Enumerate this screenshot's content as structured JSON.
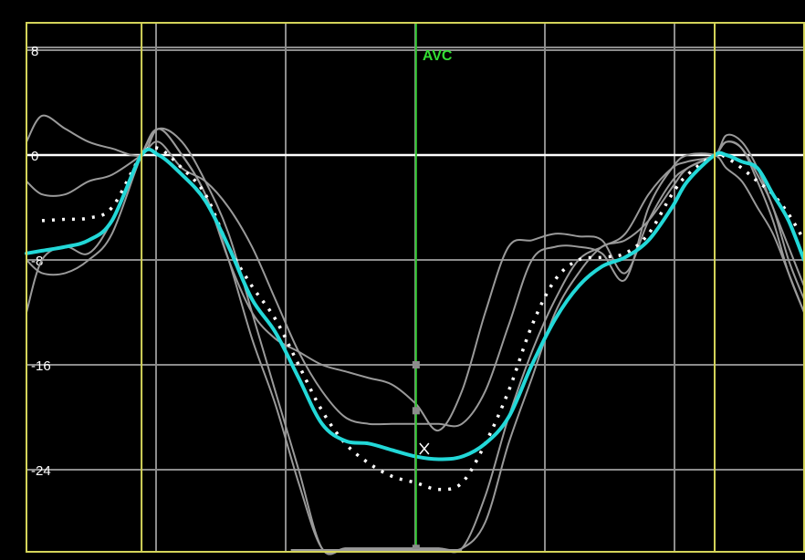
{
  "chart_data": {
    "type": "line",
    "title": "",
    "xlabel": "",
    "ylabel": "",
    "ylim": [
      -30,
      10
    ],
    "xlim": [
      0,
      100
    ],
    "y_ticks": [
      {
        "value": 8,
        "label": "8"
      },
      {
        "value": 0,
        "label": "0"
      },
      {
        "value": -8,
        "label": "-8"
      },
      {
        "value": -16,
        "label": "-16"
      },
      {
        "value": -24,
        "label": "-24"
      }
    ],
    "grid": true,
    "background": "#000000",
    "colors": {
      "grid": "#8c8c8c",
      "zero_line": "#ffffff",
      "cycle_markers": "#d4d45a",
      "avc_marker": "#2ec42e",
      "segment_curves": "#9a9a9a",
      "average_curve": "#22d8d8",
      "dotted_curve": "#ffffff",
      "border": "#d4d45a"
    },
    "cycle_markers_x": [
      14.8,
      88.5
    ],
    "avc": {
      "label": "AVC",
      "x": 50.1
    },
    "segments": [
      {
        "x": [
          0,
          2,
          5,
          8,
          11,
          14.8,
          17,
          20,
          23,
          26,
          29,
          32,
          35,
          38,
          41,
          44,
          47,
          50.1,
          53,
          56,
          59,
          62,
          65,
          68,
          71,
          74,
          77,
          80,
          83,
          85,
          88.5,
          90,
          92,
          94,
          96,
          98,
          100
        ],
        "y": [
          1,
          3,
          2,
          1,
          0.5,
          0,
          2,
          0,
          -3,
          -8,
          -12,
          -14,
          -15,
          -16,
          -16.5,
          -17,
          -17.5,
          -19,
          -21,
          -18,
          -12,
          -7,
          -6.5,
          -6,
          -6.2,
          -6.5,
          -9,
          -5,
          -2,
          -1,
          0,
          1,
          0.5,
          -2,
          -5,
          -9,
          -12
        ]
      },
      {
        "x": [
          0,
          2,
          5,
          8,
          11,
          14.8,
          17,
          20,
          23,
          26,
          29,
          32,
          35,
          38,
          41,
          44,
          47,
          50.1,
          53,
          56,
          59,
          62,
          65,
          68,
          71,
          74,
          77,
          80,
          83,
          85,
          88.5,
          90,
          92,
          94,
          96,
          98,
          100
        ],
        "y": [
          -2,
          -3,
          -3,
          -2,
          -1.5,
          0,
          1,
          -1,
          -2,
          -4,
          -7,
          -11,
          -15,
          -18,
          -20,
          -20.5,
          -20.5,
          -20.5,
          -20.5,
          -20.5,
          -18,
          -13,
          -8,
          -7,
          -7,
          -7.5,
          -9.5,
          -4,
          -1,
          0,
          0,
          -1,
          -2,
          -4,
          -6,
          -9,
          -12
        ]
      },
      {
        "x": [
          0,
          2,
          5,
          8,
          11,
          14.8,
          17,
          20,
          23,
          26,
          29,
          32,
          35,
          38,
          41,
          44,
          47,
          50.1,
          53,
          56,
          59,
          62,
          65,
          68,
          71,
          74,
          77,
          80,
          83,
          85,
          88.5,
          90,
          92,
          94,
          96,
          98,
          100
        ],
        "y": [
          -12,
          -8,
          -7,
          -7.5,
          -5,
          0,
          2,
          1,
          -2,
          -6,
          -12,
          -18,
          -24,
          -30,
          -30,
          -30,
          -30,
          -30,
          -30,
          -30,
          -26,
          -20,
          -15,
          -11,
          -8,
          -7,
          -6,
          -3,
          -1,
          -0.5,
          0,
          1.5,
          1,
          -1,
          -4,
          -7,
          -10
        ]
      },
      {
        "x": [
          0,
          2,
          5,
          8,
          11,
          14.8,
          17,
          20,
          23,
          26,
          29,
          32,
          35,
          38,
          41,
          44,
          47,
          50.1,
          53,
          56,
          59,
          62,
          65,
          68,
          71,
          74,
          77,
          80,
          83,
          85,
          88.5,
          90,
          92,
          94,
          96,
          98,
          100
        ],
        "y": [
          -8,
          -9,
          -9,
          -8,
          -6,
          0,
          2,
          0,
          -3,
          -8,
          -14,
          -19,
          -25,
          -30,
          -30,
          -30,
          -30,
          -30,
          -30,
          -30,
          -28,
          -22,
          -17,
          -12,
          -9,
          -7,
          -6.5,
          -5,
          -2.5,
          -1,
          0,
          1,
          0.5,
          -1.5,
          -4,
          -8,
          -11
        ]
      }
    ],
    "average": {
      "x": [
        0,
        2,
        5,
        8,
        11,
        14.8,
        17,
        20,
        23,
        26,
        29,
        32,
        35,
        38,
        41,
        44,
        47,
        50.1,
        53,
        56,
        59,
        62,
        65,
        68,
        71,
        74,
        77,
        80,
        83,
        85,
        88.5,
        90,
        92,
        94,
        96,
        98,
        100
      ],
      "y": [
        -7.5,
        -7.3,
        -7,
        -6.5,
        -5,
        0,
        0,
        -1.5,
        -3.5,
        -7,
        -11,
        -13.5,
        -17,
        -20.5,
        -21.8,
        -22,
        -22.5,
        -23,
        -23.2,
        -23,
        -22,
        -20,
        -16,
        -12.5,
        -10,
        -8.5,
        -7.8,
        -6.5,
        -4,
        -2,
        0,
        0,
        -0.5,
        -1,
        -3,
        -5,
        -8
      ]
    },
    "dotted": {
      "x": [
        2,
        5,
        8,
        11,
        14.8,
        17,
        20,
        23,
        26,
        29,
        32,
        35,
        38,
        41,
        44,
        47,
        50.1,
        53,
        56,
        59,
        62,
        65,
        68,
        71,
        74,
        77,
        80,
        83,
        85,
        88.5,
        90,
        92,
        94,
        96,
        98,
        100
      ],
      "y": [
        -5,
        -4.9,
        -4.8,
        -4,
        0,
        0.5,
        -1,
        -3,
        -7,
        -10,
        -12.5,
        -16,
        -19.5,
        -22,
        -23.5,
        -24.5,
        -25,
        -25.5,
        -25,
        -22,
        -18,
        -13,
        -9.5,
        -8,
        -7.8,
        -7.5,
        -6,
        -3,
        -1.5,
        0,
        -0.2,
        -1,
        -2,
        -3,
        -4.5,
        -6.5
      ]
    },
    "avc_points": [
      {
        "y": -16,
        "color": "#8c8c8c"
      },
      {
        "y": -19.5,
        "color": "#8c8c8c"
      },
      {
        "y": -22.4,
        "color": "#ffffff",
        "shape": "x"
      },
      {
        "y": -30,
        "color": "#8c8c8c"
      }
    ]
  }
}
